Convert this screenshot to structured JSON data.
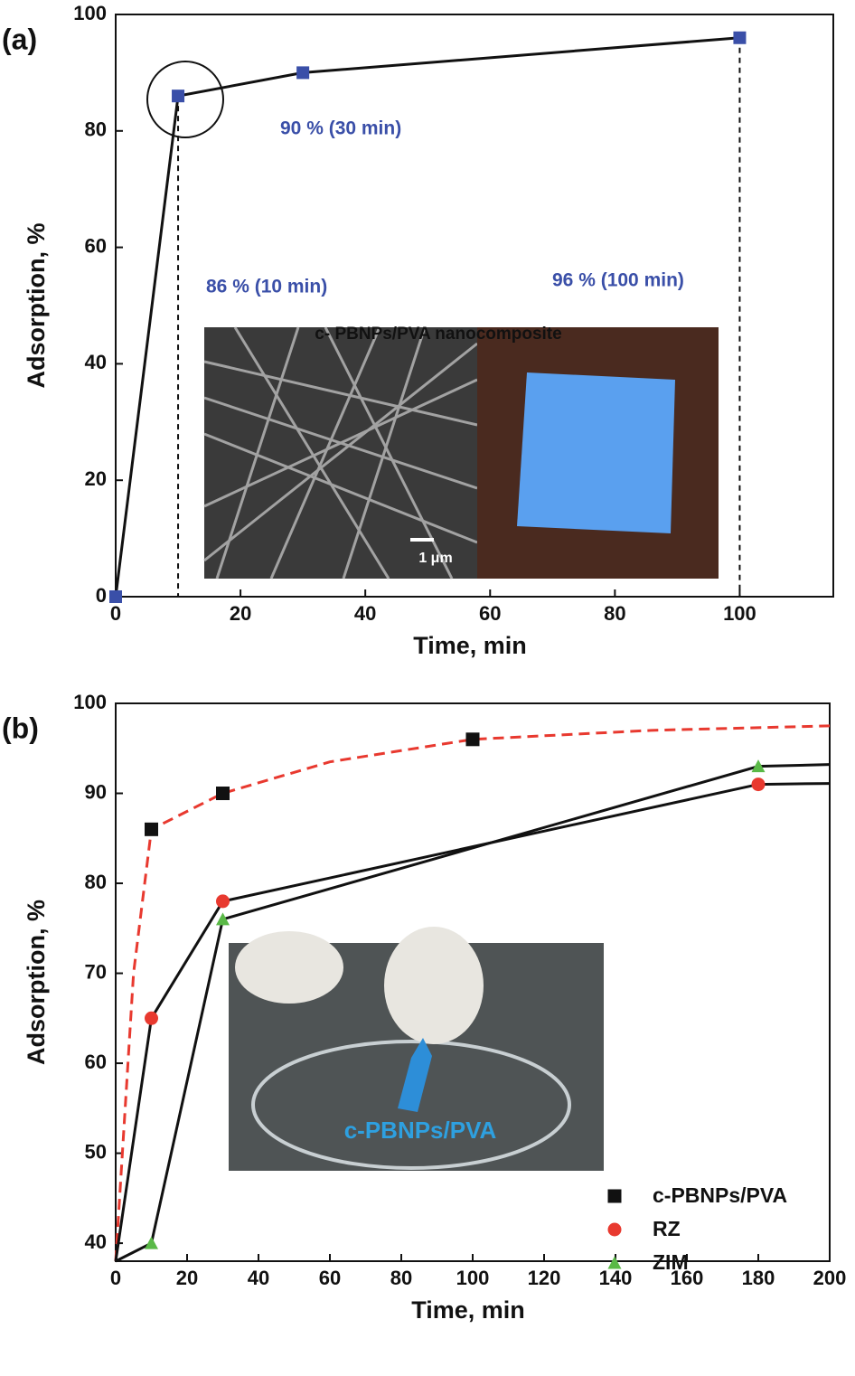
{
  "chart_data": [
    {
      "type": "line",
      "panel_label": "(a)",
      "x_label": "Time, min",
      "y_label": "Adsorption, %",
      "x": [
        0,
        10,
        30,
        100
      ],
      "values": [
        0,
        86,
        90,
        96
      ],
      "color": "#3a4fa8",
      "line_color": "#111111",
      "xlim": [
        0,
        115
      ],
      "ylim": [
        0,
        100
      ],
      "xticks": [
        0,
        20,
        40,
        60,
        80,
        100
      ],
      "yticks": [
        0,
        20,
        40,
        60,
        80,
        100
      ],
      "annotations": [
        "90 % (30 min)",
        "86 % (10 min)",
        "96 % (100 min)"
      ],
      "inset_title": "c- PBNPs/PVA nanocomposite",
      "scale_bar": "1 μm"
    },
    {
      "type": "scatter",
      "panel_label": "(b)",
      "x_label": "Time, min",
      "y_label": "Adsorption, %",
      "xlim": [
        0,
        200
      ],
      "ylim": [
        38,
        100
      ],
      "xticks": [
        0,
        20,
        40,
        60,
        80,
        100,
        120,
        140,
        160,
        180,
        200
      ],
      "yticks": [
        40,
        50,
        60,
        70,
        80,
        90,
        100
      ],
      "legend": "lower right",
      "series": [
        {
          "name": "c-PBNPs/PVA",
          "color": "#111111",
          "marker": "square",
          "x": [
            10,
            30,
            100
          ],
          "values": [
            86,
            90,
            96
          ],
          "fit": {
            "color": "#e8392f",
            "dashed": true,
            "x": [
              0,
              5,
              10,
              30,
              60,
              100,
              150,
              200
            ],
            "values": [
              38,
              70,
              86,
              90,
              93.5,
              96,
              97,
              97.5
            ]
          }
        },
        {
          "name": "RZ",
          "color": "#e8392f",
          "marker": "circle",
          "x": [
            10,
            30,
            180
          ],
          "values": [
            65,
            78,
            91
          ],
          "fit": {
            "color": "#111111",
            "dashed": false,
            "x": [
              0,
              10,
              30,
              180,
              200
            ],
            "values": [
              38,
              65,
              78,
              91,
              91.1
            ]
          }
        },
        {
          "name": "ZIM",
          "color": "#5ab947",
          "marker": "triangle",
          "x": [
            10,
            30,
            180
          ],
          "values": [
            40,
            76,
            93
          ],
          "fit": {
            "color": "#111111",
            "dashed": false,
            "x": [
              0,
              10,
              30,
              180,
              200
            ],
            "values": [
              38,
              40,
              76,
              93,
              93.2
            ]
          }
        }
      ],
      "inset_label": "c-PBNPs/PVA"
    }
  ]
}
